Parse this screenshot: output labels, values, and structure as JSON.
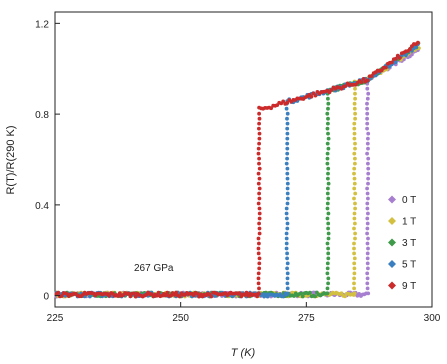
{
  "chart_data": {
    "type": "scatter",
    "xlabel": "T (K)",
    "ylabel": "R(T)/R(290 K)",
    "xlim": [
      225,
      300
    ],
    "ylim": [
      -0.05,
      1.25
    ],
    "xticks": [
      "225",
      "250",
      "275",
      "300"
    ],
    "yticks": [
      "0",
      "0.4",
      "0.8",
      "1.2"
    ],
    "annotation": "267 GPa",
    "legend_position": "right",
    "series": [
      {
        "name": "0 T",
        "color": "#a77fd0",
        "tc": 287.2,
        "top_end": 1.08
      },
      {
        "name": "1 T",
        "color": "#d4c040",
        "tc": 284.6,
        "top_end": 1.09
      },
      {
        "name": "3 T",
        "color": "#3f9a4a",
        "tc": 279.3,
        "top_end": 1.1
      },
      {
        "name": "5 T",
        "color": "#3a7fc0",
        "tc": 271.2,
        "top_end": 1.1
      },
      {
        "name": "9 T",
        "color": "#cc2b2b",
        "tc": 265.6,
        "top_end": 1.11
      }
    ],
    "normal_state": {
      "onset_value": 0.82,
      "kink_T": 287,
      "kink_value": 0.95
    }
  }
}
